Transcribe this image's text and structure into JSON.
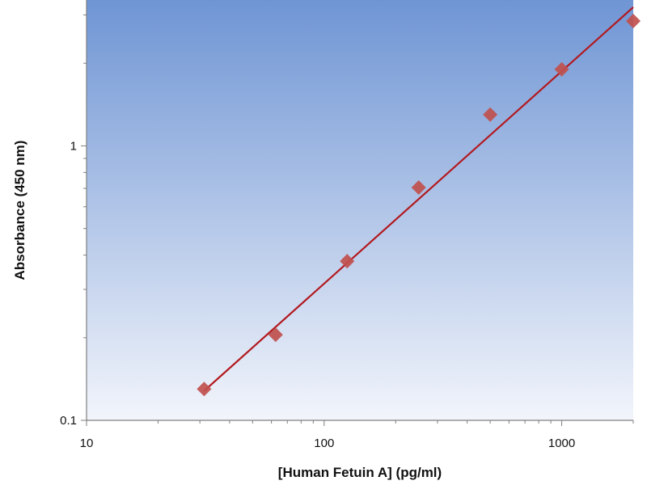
{
  "chart_data": {
    "type": "scatter",
    "xlabel": "[Human Fetuin A] (pg/ml)",
    "ylabel": "Absorbance (450 nm)",
    "xscale": "log",
    "yscale": "log",
    "xlim": [
      10,
      2000
    ],
    "ylim": [
      0.1,
      3.4
    ],
    "xticks": [
      10,
      100,
      1000
    ],
    "xtick_labels": [
      "10",
      "100",
      "1000"
    ],
    "yticks": [
      0.1,
      1
    ],
    "ytick_labels": [
      "0.1",
      "1"
    ],
    "grid": false,
    "legend": "none",
    "series": [
      {
        "x": [
          31.25,
          62.5,
          125,
          250,
          500,
          1000,
          2000
        ],
        "y": [
          0.13,
          0.205,
          0.38,
          0.705,
          1.3,
          1.9,
          2.85
        ],
        "marker": "diamond",
        "color": "#c0504d"
      }
    ],
    "fit": {
      "type": "linear-log-log",
      "x_range": [
        31.25,
        2000
      ],
      "y_range": [
        0.128,
        3.2
      ],
      "color": "#b2181e"
    },
    "plot_background": [
      "#6f95d4",
      "#f2f5fb"
    ]
  }
}
